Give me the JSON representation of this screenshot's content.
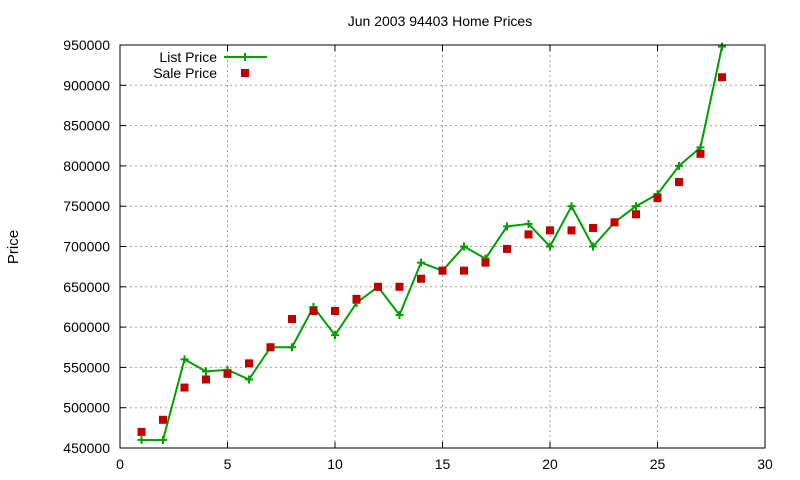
{
  "chart_data": {
    "type": "line",
    "title": "Jun 2003 94403 Home Prices",
    "xlabel": "",
    "ylabel": "Price",
    "xlim": [
      0,
      30
    ],
    "ylim": [
      450000,
      950000
    ],
    "xticks": [
      0,
      5,
      10,
      15,
      20,
      25,
      30
    ],
    "yticks": [
      450000,
      500000,
      550000,
      600000,
      650000,
      700000,
      750000,
      800000,
      850000,
      900000,
      950000
    ],
    "grid": true,
    "legend_position": "top-left",
    "series": [
      {
        "name": "List Price",
        "style": "line-plus",
        "color": "#00a000",
        "x": [
          1,
          2,
          3,
          4,
          5,
          6,
          7,
          8,
          9,
          10,
          11,
          12,
          13,
          14,
          15,
          16,
          17,
          18,
          19,
          20,
          21,
          22,
          23,
          24,
          25,
          26,
          27,
          28
        ],
        "y": [
          460000,
          460000,
          560000,
          545000,
          547000,
          535000,
          575000,
          575000,
          625000,
          590000,
          630000,
          650000,
          615000,
          680000,
          670000,
          700000,
          685000,
          725000,
          728000,
          700000,
          750000,
          700000,
          730000,
          750000,
          765000,
          800000,
          823000,
          948000
        ]
      },
      {
        "name": "Sale Price",
        "style": "square",
        "color": "#c00000",
        "x": [
          1,
          2,
          3,
          4,
          5,
          6,
          7,
          8,
          9,
          10,
          11,
          12,
          13,
          14,
          15,
          16,
          17,
          18,
          19,
          20,
          21,
          22,
          23,
          24,
          25,
          26,
          27,
          28
        ],
        "y": [
          470000,
          485000,
          525000,
          535000,
          542000,
          555000,
          575000,
          610000,
          620000,
          620000,
          635000,
          650000,
          650000,
          660000,
          670000,
          670000,
          680000,
          697000,
          715000,
          720000,
          720000,
          723000,
          730000,
          740000,
          760000,
          780000,
          815000,
          910000
        ]
      }
    ]
  }
}
